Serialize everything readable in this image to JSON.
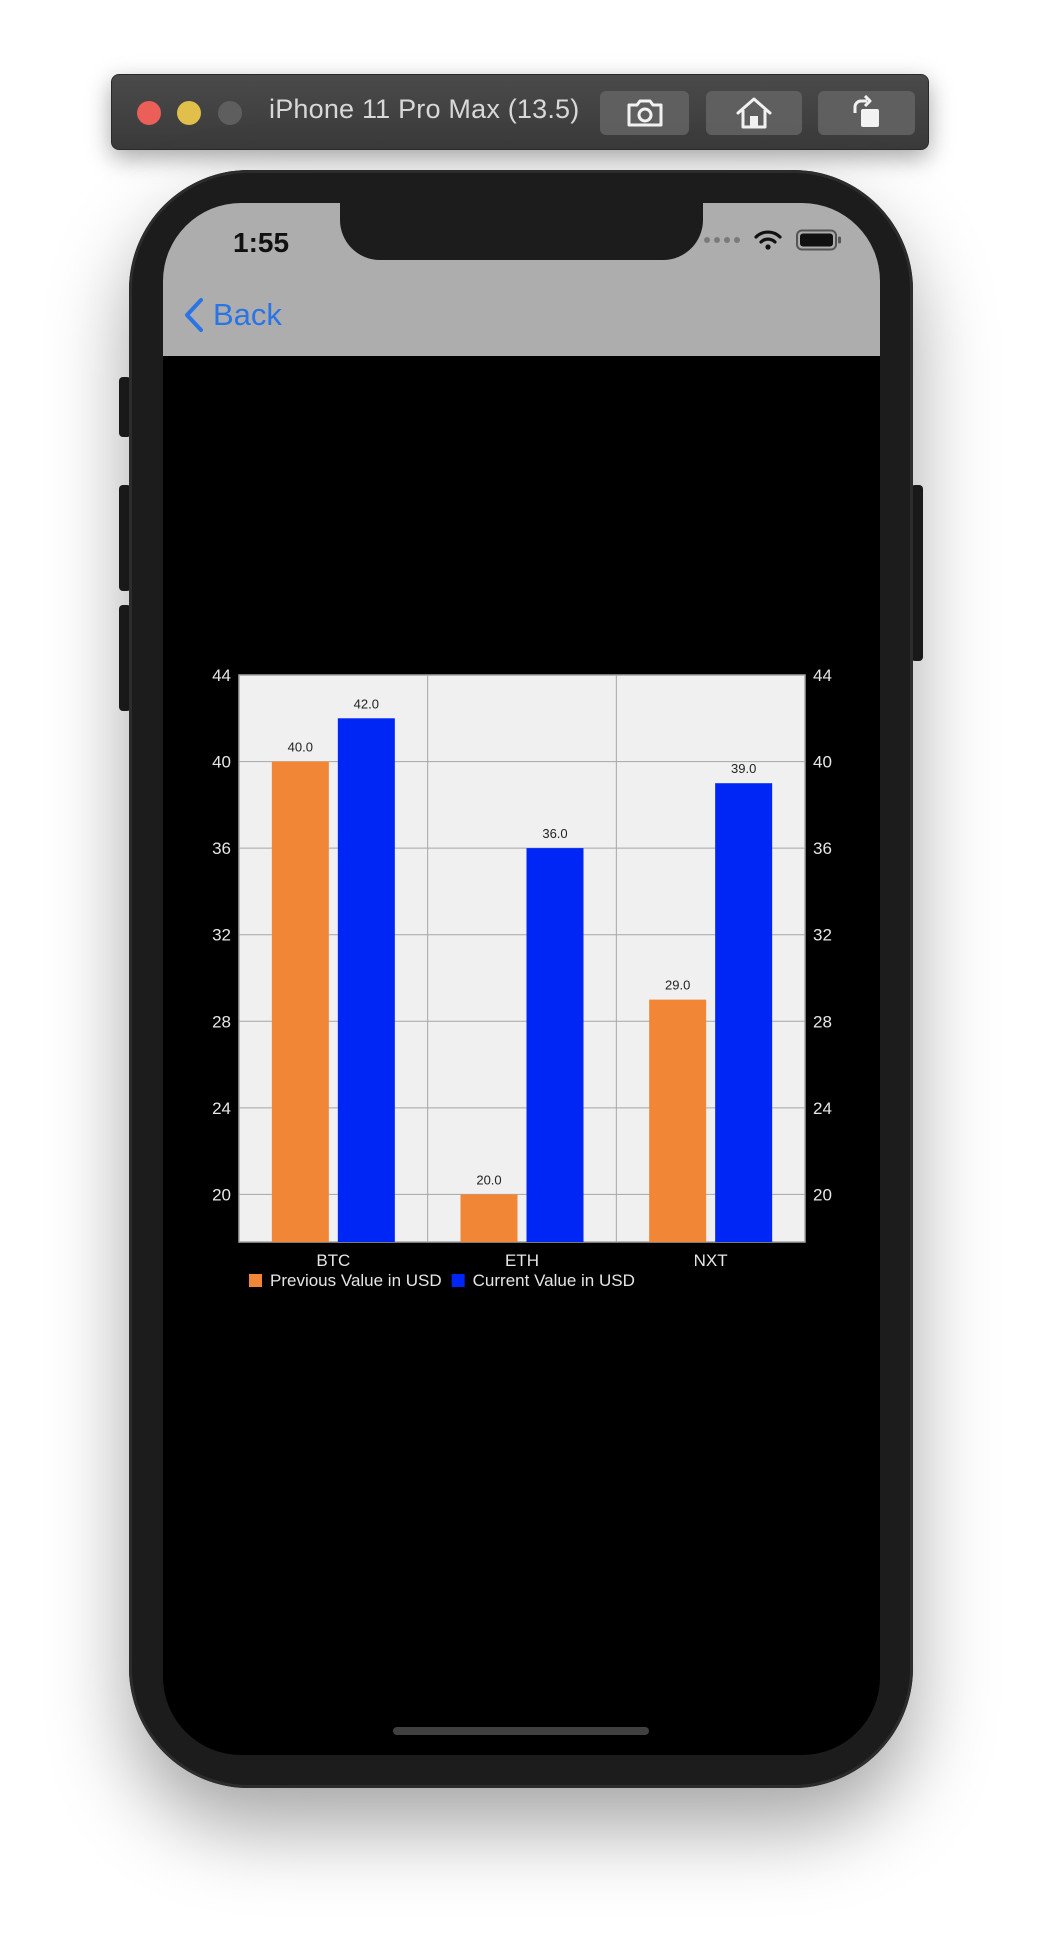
{
  "simulator": {
    "title": "iPhone 11 Pro Max (13.5)",
    "icons": [
      "screenshot-icon",
      "home-icon",
      "rotate-icon"
    ]
  },
  "status_bar": {
    "time": "1:55"
  },
  "nav": {
    "back_label": "Back"
  },
  "colors": {
    "previous": "#f18736",
    "current": "#0026f5",
    "plot_bg": "#f0f0f0",
    "grid": "#a6a6a6",
    "link": "#2a74e6"
  },
  "chart_data": {
    "type": "bar",
    "categories": [
      "BTC",
      "ETH",
      "NXT"
    ],
    "series": [
      {
        "name": "Previous Value in USD",
        "values": [
          40.0,
          20.0,
          29.0
        ],
        "labels": [
          "40.0",
          "20.0",
          "29.0"
        ]
      },
      {
        "name": "Current Value in USD",
        "values": [
          42.0,
          36.0,
          39.0
        ],
        "labels": [
          "42.0",
          "36.0",
          "39.0"
        ]
      }
    ],
    "yticks": [
      "20",
      "24",
      "28",
      "32",
      "36",
      "40",
      "44"
    ],
    "ylim": [
      17.8,
      44
    ],
    "axes": "left-and-right",
    "grid": true,
    "legend_position": "bottom-left"
  }
}
